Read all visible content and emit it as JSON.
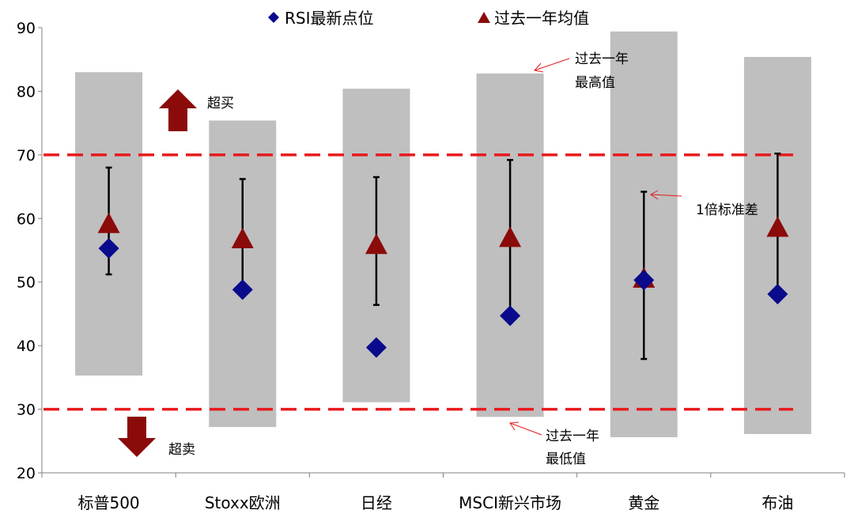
{
  "chart_data": {
    "type": "range",
    "categories": [
      "标普500",
      "Stoxx欧洲",
      "日经",
      "MSCI新兴市场",
      "黄金",
      "布油"
    ],
    "ylim": [
      20,
      90
    ],
    "yticks": [
      20,
      30,
      40,
      50,
      60,
      70,
      80,
      90
    ],
    "ranges": [
      {
        "low": 35.3,
        "high": 83.0
      },
      {
        "low": 27.2,
        "high": 75.4
      },
      {
        "low": 31.1,
        "high": 80.4
      },
      {
        "low": 28.8,
        "high": 82.8
      },
      {
        "low": 25.6,
        "high": 89.4
      },
      {
        "low": 26.1,
        "high": 85.4
      }
    ],
    "std_band": [
      {
        "low": 51.2,
        "high": 68.0
      },
      {
        "low": 48.8,
        "high": 66.2
      },
      {
        "low": 46.4,
        "high": 66.5
      },
      {
        "low": 44.6,
        "high": 69.2
      },
      {
        "low": 37.9,
        "high": 64.2
      },
      {
        "low": 48.1,
        "high": 70.2
      }
    ],
    "series": [
      {
        "name": "RSI最新点位",
        "marker": "diamond",
        "color": "#0a0a8c",
        "values": [
          55.3,
          48.8,
          39.7,
          44.7,
          50.3,
          48.1
        ]
      },
      {
        "name": "过去一年均值",
        "marker": "triangle",
        "color": "#8b0a0a",
        "values": [
          59.2,
          56.8,
          55.9,
          57.0,
          50.6,
          58.6
        ]
      }
    ],
    "thresholds": [
      70,
      30
    ],
    "threshold_color": "#e8191b",
    "range_color": "#bfbfbf",
    "arrow_color": "#8b0a0a",
    "annotations": {
      "overbought": "超买",
      "oversold": "超卖",
      "high_line1": "过去一年",
      "high_line2": "最高值",
      "low_line1": "过去一年",
      "low_line2": "最低值",
      "std": "1倍标准差"
    }
  }
}
